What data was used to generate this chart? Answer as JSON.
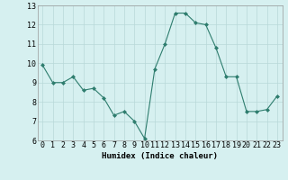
{
  "xlabel": "Humidex (Indice chaleur)",
  "x_values": [
    0,
    1,
    2,
    3,
    4,
    5,
    6,
    7,
    8,
    9,
    10,
    11,
    12,
    13,
    14,
    15,
    16,
    17,
    18,
    19,
    20,
    21,
    22,
    23
  ],
  "y_values": [
    9.9,
    9.0,
    9.0,
    9.3,
    8.6,
    8.7,
    8.2,
    7.3,
    7.5,
    7.0,
    6.1,
    9.7,
    11.0,
    12.6,
    12.6,
    12.1,
    12.0,
    10.8,
    9.3,
    9.3,
    7.5,
    7.5,
    7.6,
    8.3
  ],
  "ylim": [
    6,
    13
  ],
  "yticks": [
    6,
    7,
    8,
    9,
    10,
    11,
    12,
    13
  ],
  "xticks": [
    0,
    1,
    2,
    3,
    4,
    5,
    6,
    7,
    8,
    9,
    10,
    11,
    12,
    13,
    14,
    15,
    16,
    17,
    18,
    19,
    20,
    21,
    22,
    23
  ],
  "line_color": "#2e7d6e",
  "marker": "D",
  "marker_size": 2.0,
  "bg_color": "#d6f0f0",
  "grid_color": "#b8d8d8",
  "xlabel_fontsize": 6.5,
  "tick_fontsize": 6.0
}
